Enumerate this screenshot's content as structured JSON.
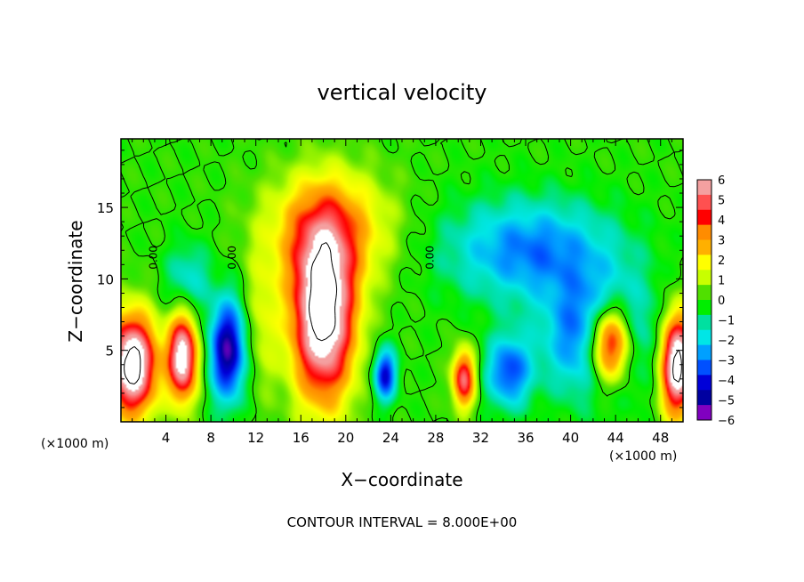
{
  "chart_data": {
    "type": "heatmap",
    "title": "vertical velocity",
    "xlabel": "X−coordinate",
    "ylabel": "Z−coordinate",
    "x_unit": "(×1000 m)",
    "x_unit_right": "(×1000 m)",
    "xlim": [
      0,
      50
    ],
    "ylim": [
      0,
      19.8
    ],
    "x_ticks": [
      4,
      8,
      12,
      16,
      20,
      24,
      28,
      32,
      36,
      40,
      44,
      48
    ],
    "y_ticks": [
      5,
      10,
      15
    ],
    "colorbar": {
      "ticks": [
        "6",
        "5",
        "4",
        "3",
        "2",
        "1",
        "0",
        "−1",
        "−2",
        "−3",
        "−4",
        "−5",
        "−6"
      ],
      "colors": [
        "#f4a0a0",
        "#ff5050",
        "#ff0000",
        "#ff8c00",
        "#ffb000",
        "#ffff00",
        "#c8ff00",
        "#50e000",
        "#00ee00",
        "#00e0a0",
        "#00e6e6",
        "#00a0ff",
        "#0050ff",
        "#0000d8",
        "#0000a0",
        "#8000c0"
      ]
    },
    "contour_labels": [
      "0.00",
      "0.00",
      "0.00"
    ],
    "footnote": "CONTOUR INTERVAL = 8.000E+00",
    "background_value": 0,
    "features": [
      {
        "x": 18.5,
        "z": 13.5,
        "rx": 5.5,
        "rz": 4.0,
        "value": 3.5
      },
      {
        "x": 18.0,
        "z": 7.5,
        "rx": 2.8,
        "rz": 6.0,
        "value": 9
      },
      {
        "x": 1.0,
        "z": 4.0,
        "rx": 2.2,
        "rz": 3.5,
        "value": 9
      },
      {
        "x": 49.5,
        "z": 4.0,
        "rx": 1.5,
        "rz": 3.5,
        "value": 9
      },
      {
        "x": 5.5,
        "z": 4.5,
        "rx": 1.3,
        "rz": 3.0,
        "value": 8
      },
      {
        "x": 9.5,
        "z": 5.0,
        "rx": 1.6,
        "rz": 3.5,
        "value": -6
      },
      {
        "x": 23.5,
        "z": 3.3,
        "rx": 1.0,
        "rz": 1.8,
        "value": -5
      },
      {
        "x": 30.5,
        "z": 3.0,
        "rx": 1.0,
        "rz": 2.0,
        "value": 6
      },
      {
        "x": 36.5,
        "z": 12.0,
        "rx": 7.5,
        "rz": 3.5,
        "value": -3.5
      },
      {
        "x": 42.5,
        "z": 6.0,
        "rx": 4.5,
        "rz": 4.0,
        "value": -5
      },
      {
        "x": 43.5,
        "z": 5.5,
        "rx": 2.0,
        "rz": 2.8,
        "value": 9
      },
      {
        "x": 12.5,
        "z": 7.0,
        "rx": 1.5,
        "rz": 5.0,
        "value": 1.5
      },
      {
        "x": 6.0,
        "z": 10.0,
        "rx": 2.0,
        "rz": 2.5,
        "value": -2
      },
      {
        "x": 34.5,
        "z": 3.5,
        "rx": 2.0,
        "rz": 2.5,
        "value": -4
      }
    ]
  }
}
